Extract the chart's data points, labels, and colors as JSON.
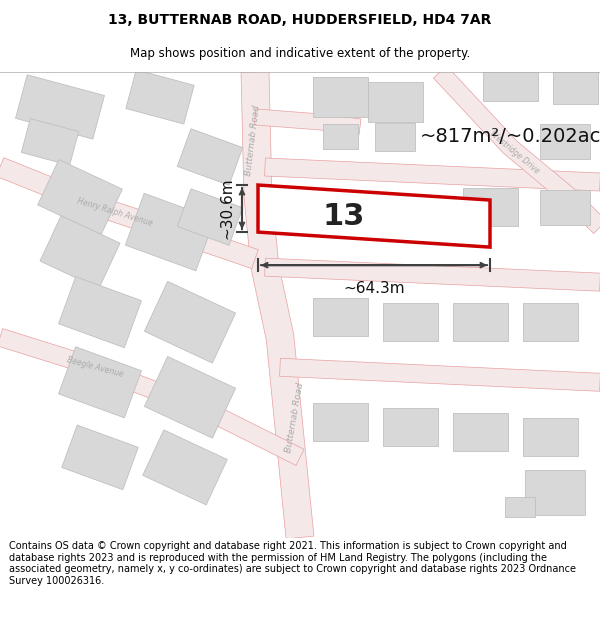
{
  "title": "13, BUTTERNAB ROAD, HUDDERSFIELD, HD4 7AR",
  "subtitle": "Map shows position and indicative extent of the property.",
  "footer": "Contains OS data © Crown copyright and database right 2021. This information is subject to Crown copyright and database rights 2023 and is reproduced with the permission of HM Land Registry. The polygons (including the associated geometry, namely x, y co-ordinates) are subject to Crown copyright and database rights 2023 Ordnance Survey 100026316.",
  "area_label": "~817m²/~0.202ac.",
  "width_label": "~64.3m",
  "height_label": "~30.6m",
  "number_label": "13",
  "map_bg": "#f7f7f7",
  "road_fill": "#f5e8e8",
  "road_edge": "#e8a0a0",
  "building_fill": "#d8d8d8",
  "building_edge": "#c0c0c0",
  "highlight_color": "#cc0000",
  "arrow_color": "#404040",
  "road_label_color": "#aaaaaa",
  "title_fontsize": 10,
  "subtitle_fontsize": 8.5,
  "footer_fontsize": 7,
  "area_fontsize": 14,
  "number_fontsize": 22,
  "measurement_fontsize": 11,
  "road_label_fontsize": 6.5
}
